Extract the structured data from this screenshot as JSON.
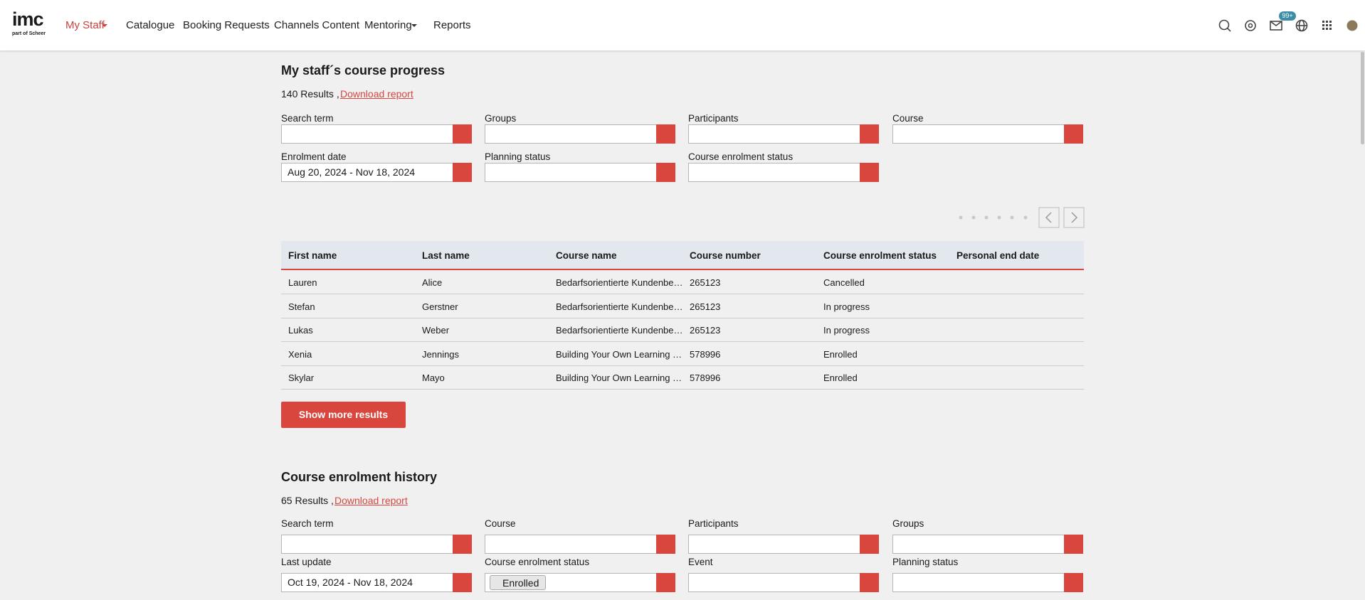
{
  "header": {
    "logo": "imc",
    "logo_sub": "part of Scheer",
    "nav": [
      "My Staff",
      "Catalogue",
      "Booking Requests",
      "Channels Content",
      "Mentoring",
      "Reports"
    ],
    "badge": "99+"
  },
  "sections": [
    {
      "title": "My staff´s course progress",
      "results": "140 Results ,",
      "download": "Download report",
      "filters": [
        {
          "label": "Search term",
          "kind": "search"
        },
        {
          "label": "Groups",
          "kind": "select"
        },
        {
          "label": "Participants",
          "kind": "select"
        },
        {
          "label": "Course",
          "kind": "select"
        },
        {
          "label": "Enrolment date",
          "kind": "date",
          "value": "Aug 20, 2024 - Nov 18, 2024"
        },
        {
          "label": "Planning status",
          "kind": "select"
        },
        {
          "label": "Course enrolment status",
          "kind": "select"
        }
      ],
      "table": {
        "headers": [
          "First name",
          "Last name",
          "Course name",
          "Course number",
          "Course enrolment status",
          "Personal end date"
        ],
        "rows": [
          [
            "Lauren",
            "Alice",
            "Bedarfsorientierte Kundenbe…",
            "265123",
            "Cancelled"
          ],
          [
            "Stefan",
            "Gerstner",
            "Bedarfsorientierte Kundenbe…",
            "265123",
            "In progress"
          ],
          [
            "Lukas",
            "Weber",
            "Bedarfsorientierte Kundenbe…",
            "265123",
            "In progress"
          ],
          [
            "Xenia",
            "Jennings",
            "Building Your Own Learning …",
            "578996",
            "Enrolled"
          ],
          [
            "Skylar",
            "Mayo",
            "Building Your Own Learning …",
            "578996",
            "Enrolled"
          ]
        ]
      },
      "button": "Show more results"
    },
    {
      "title": "Course enrolment history",
      "results": "65 Results ,",
      "download": "Download report",
      "filters": [
        {
          "label": "Search term",
          "kind": "search"
        },
        {
          "label": "Course",
          "kind": "select"
        },
        {
          "label": "Participants",
          "kind": "select"
        },
        {
          "label": "Groups",
          "kind": "select"
        },
        {
          "label": "Last update",
          "kind": "date",
          "value": "Oct 19, 2024 - Nov 18, 2024"
        },
        {
          "label": "Course enrolment status",
          "kind": "select",
          "tag": "Enrolled"
        },
        {
          "label": "Event",
          "kind": "select"
        },
        {
          "label": "Planning status",
          "kind": "select"
        }
      ]
    }
  ]
}
